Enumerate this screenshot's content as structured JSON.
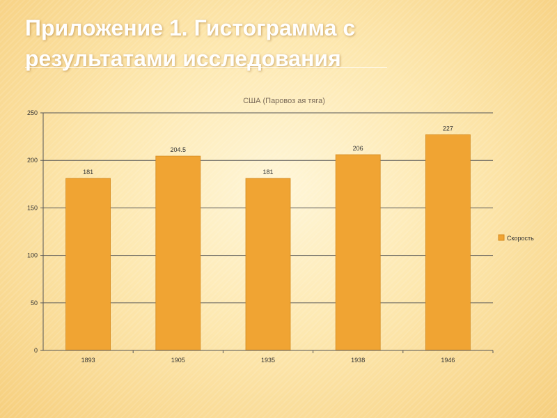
{
  "slide": {
    "title_line1": "Приложение 1. Гистограмма с",
    "title_line2": "результатами исследования"
  },
  "colors": {
    "bar": "#f0a433",
    "bar_edge": "#d48a1f",
    "grid": "#555555"
  },
  "chart_data": {
    "type": "bar",
    "title": "США (Паровоз ая тяга)",
    "categories": [
      "1893",
      "1905",
      "1935",
      "1938",
      "1946"
    ],
    "series": [
      {
        "name": "Скорость",
        "values": [
          181,
          204.5,
          181,
          206,
          227
        ]
      }
    ],
    "data_labels": [
      "181",
      "204.5",
      "181",
      "206",
      "227"
    ],
    "ylim": [
      0,
      250
    ],
    "yticks": [
      0,
      50,
      100,
      150,
      200,
      250
    ],
    "ytick_labels": [
      "0",
      "50",
      "100",
      "150",
      "200",
      "250"
    ],
    "grid": true,
    "legend": "right"
  }
}
